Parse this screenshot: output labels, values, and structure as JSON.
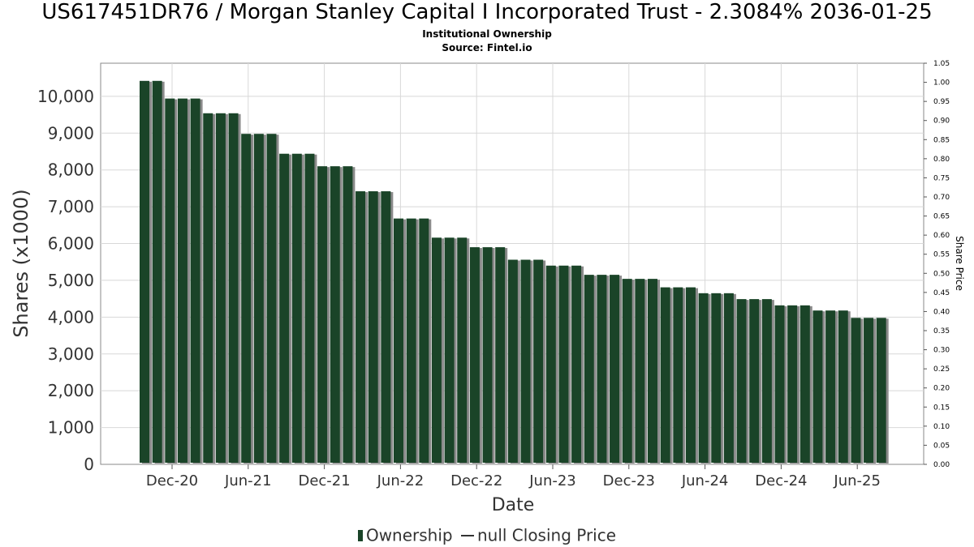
{
  "title": "US617451DR76 / Morgan Stanley Capital I Incorporated Trust - 2.3084% 2036-01-25",
  "subtitle1": "Institutional Ownership",
  "subtitle2": "Source: Fintel.io",
  "legend": {
    "ownership": "Ownership",
    "price": "null Closing Price"
  },
  "colors": {
    "bar": "#1a4428",
    "shadow": "#8a8a8a",
    "grid": "#d8d8d8"
  },
  "chart_data": {
    "type": "bar",
    "xlabel": "Date",
    "ylabel": "Shares (x1000)",
    "y2label": "Share Price",
    "ylim": [
      0,
      10900
    ],
    "y2lim": [
      0,
      1.05
    ],
    "yticks": [
      "0",
      "1,000",
      "2,000",
      "3,000",
      "4,000",
      "5,000",
      "6,000",
      "7,000",
      "8,000",
      "9,000",
      "10,000"
    ],
    "y2ticks": [
      "0.00",
      "0.05",
      "0.10",
      "0.15",
      "0.20",
      "0.25",
      "0.30",
      "0.35",
      "0.40",
      "0.45",
      "0.50",
      "0.55",
      "0.60",
      "0.65",
      "0.70",
      "0.75",
      "0.80",
      "0.85",
      "0.90",
      "0.95",
      "1.00",
      "1.05"
    ],
    "xticks": [
      "Dec-20",
      "Jun-21",
      "Dec-21",
      "Jun-22",
      "Dec-22",
      "Jun-23",
      "Dec-23",
      "Jun-24",
      "Dec-24",
      "Jun-25"
    ],
    "grid": true,
    "legend_position": "bottom",
    "series": [
      {
        "name": "Ownership",
        "values": [
          10420,
          10420,
          9940,
          9940,
          9940,
          9540,
          9540,
          9540,
          8980,
          8980,
          8980,
          8440,
          8440,
          8440,
          8100,
          8100,
          8100,
          7420,
          7420,
          7420,
          6680,
          6680,
          6680,
          6160,
          6160,
          6160,
          5900,
          5900,
          5900,
          5560,
          5560,
          5560,
          5400,
          5400,
          5400,
          5150,
          5150,
          5150,
          5040,
          5040,
          5040,
          4810,
          4810,
          4810,
          4650,
          4650,
          4650,
          4490,
          4490,
          4490,
          4320,
          4320,
          4320,
          4180,
          4180,
          4180,
          3980,
          3980,
          3980
        ]
      },
      {
        "name": "null Closing Price",
        "values": []
      }
    ]
  }
}
